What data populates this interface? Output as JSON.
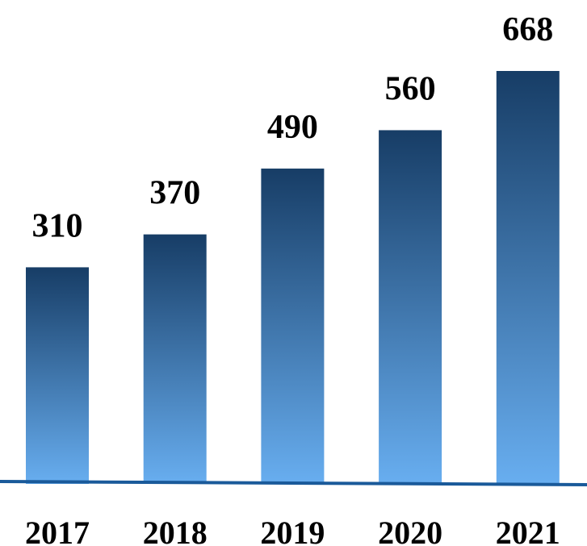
{
  "chart_data": {
    "type": "bar",
    "title": "",
    "xlabel": "",
    "ylabel": "",
    "categories": [
      "2017",
      "2018",
      "2019",
      "2020",
      "2021"
    ],
    "values": [
      310,
      370,
      490,
      560,
      668
    ],
    "data_labels": [
      "310",
      "370",
      "490",
      "560",
      "668"
    ],
    "ylim": [
      0,
      668
    ],
    "grid": false,
    "legend": "none",
    "colors": {
      "bar_top": "#173d66",
      "bar_bottom": "#68aef0",
      "baseline": "#1a5a9a"
    }
  }
}
